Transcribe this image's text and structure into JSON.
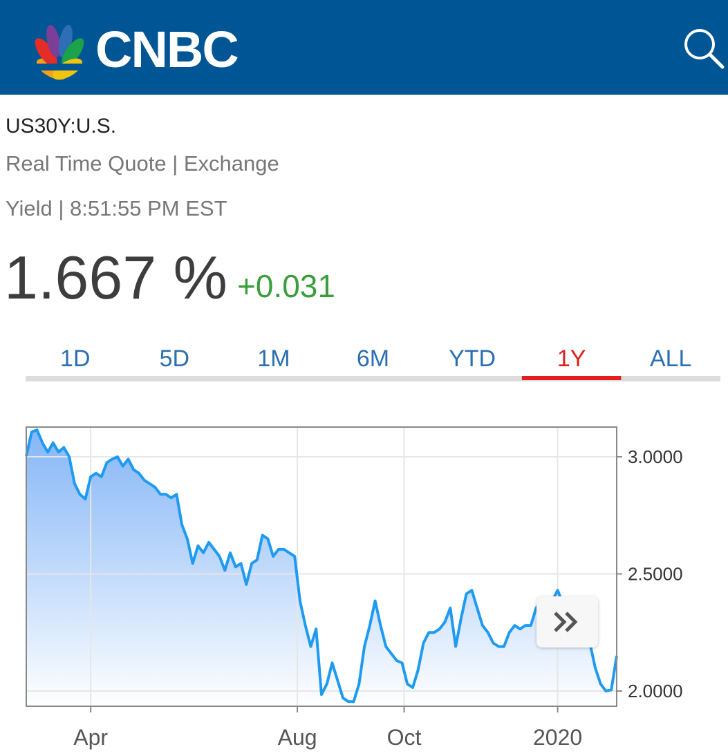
{
  "header": {
    "logo": "CNBC"
  },
  "quote": {
    "symbol": "US30Y:U.S.",
    "source": "Real Time Quote | Exchange",
    "meta": "Yield | 8:51:55 PM EST",
    "price": "1.667 %",
    "change": "+0.031"
  },
  "tabs": [
    "1D",
    "5D",
    "1M",
    "6M",
    "YTD",
    "1Y",
    "ALL"
  ],
  "active_tab_index": 5,
  "chart_data": {
    "type": "line",
    "color": "#1e9bf0",
    "fill_color": "#7fb2f6",
    "grid": true,
    "values": [
      3.003,
      3.106,
      3.115,
      3.06,
      3.02,
      3.06,
      3.02,
      3.04,
      3.0,
      2.885,
      2.84,
      2.82,
      2.915,
      2.93,
      2.915,
      2.975,
      2.99,
      3.0,
      2.96,
      2.99,
      2.945,
      2.93,
      2.9,
      2.885,
      2.87,
      2.84,
      2.84,
      2.825,
      2.84,
      2.71,
      2.65,
      2.545,
      2.62,
      2.59,
      2.635,
      2.605,
      2.575,
      2.515,
      2.59,
      2.53,
      2.545,
      2.455,
      2.545,
      2.56,
      2.665,
      2.65,
      2.575,
      2.605,
      2.605,
      2.59,
      2.575,
      2.385,
      2.28,
      2.19,
      2.265,
      1.985,
      2.03,
      2.12,
      2.045,
      1.97,
      1.955,
      1.955,
      2.03,
      2.19,
      2.28,
      2.385,
      2.28,
      2.19,
      2.16,
      2.13,
      2.12,
      2.03,
      2.015,
      2.09,
      2.205,
      2.25,
      2.25,
      2.265,
      2.295,
      2.355,
      2.19,
      2.31,
      2.415,
      2.43,
      2.355,
      2.28,
      2.25,
      2.205,
      2.19,
      2.19,
      2.25,
      2.28,
      2.265,
      2.28,
      2.28,
      2.355,
      2.385,
      2.355,
      2.385,
      2.43,
      2.37,
      2.34,
      2.295,
      2.28,
      2.28,
      2.205,
      2.1,
      2.03,
      2.0,
      2.005,
      2.15
    ],
    "xlim": [
      0,
      110
    ],
    "xticks": [
      {
        "value": 12,
        "label": "Apr"
      },
      {
        "value": 50.5,
        "label": "Aug"
      },
      {
        "value": 70.4,
        "label": "Oct"
      },
      {
        "value": 99,
        "label": "2020"
      }
    ],
    "ylim": [
      1.935,
      3.127
    ],
    "yticks": [
      {
        "value": 2,
        "label": "2.0000"
      },
      {
        "value": 2.5,
        "label": "2.5000"
      },
      {
        "value": 3,
        "label": "3.0000"
      }
    ]
  }
}
